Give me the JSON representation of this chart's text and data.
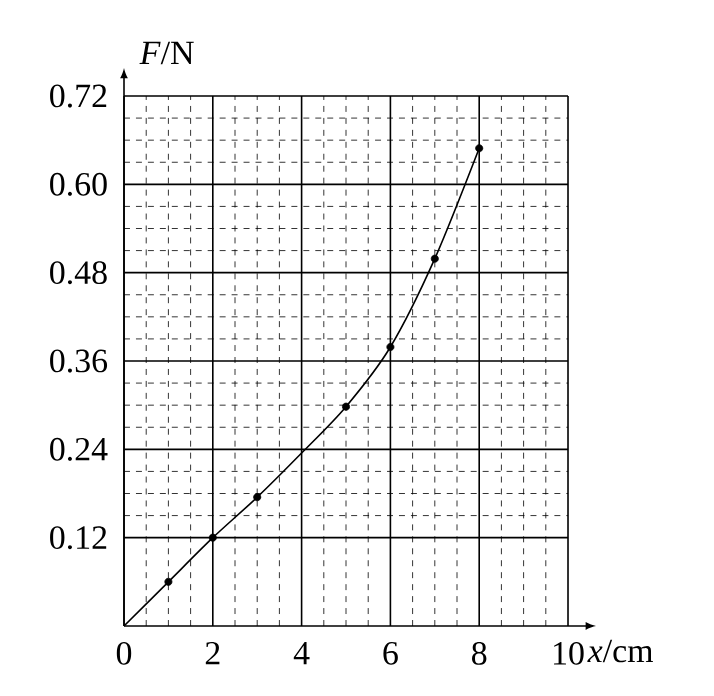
{
  "chart_data": {
    "type": "line",
    "xlabel": "*x*/cm",
    "ylabel": "*F*/N",
    "xlim": [
      0,
      10
    ],
    "ylim": [
      0,
      0.72
    ],
    "xticks": [
      0,
      2,
      4,
      6,
      8,
      10
    ],
    "yticks": [
      0.12,
      0.24,
      0.36,
      0.48,
      {
        "value": 0.6,
        "label": "0.60"
      },
      0.72
    ],
    "grid": true,
    "series": [
      {
        "color": "#000000",
        "x": [
          0,
          1,
          2,
          3,
          4,
          5,
          6,
          7,
          8
        ],
        "values": [
          0,
          0.06,
          0.12,
          0.175,
          0.235,
          0.298,
          0.379,
          0.499,
          0.649
        ]
      },
      {
        "type": "scatter",
        "color": "#000000",
        "marker": "circle",
        "x": [
          1,
          2,
          3,
          5,
          6,
          7,
          8
        ],
        "values": [
          0.06,
          0.12,
          0.175,
          0.298,
          0.379,
          0.499,
          0.649
        ]
      }
    ]
  }
}
